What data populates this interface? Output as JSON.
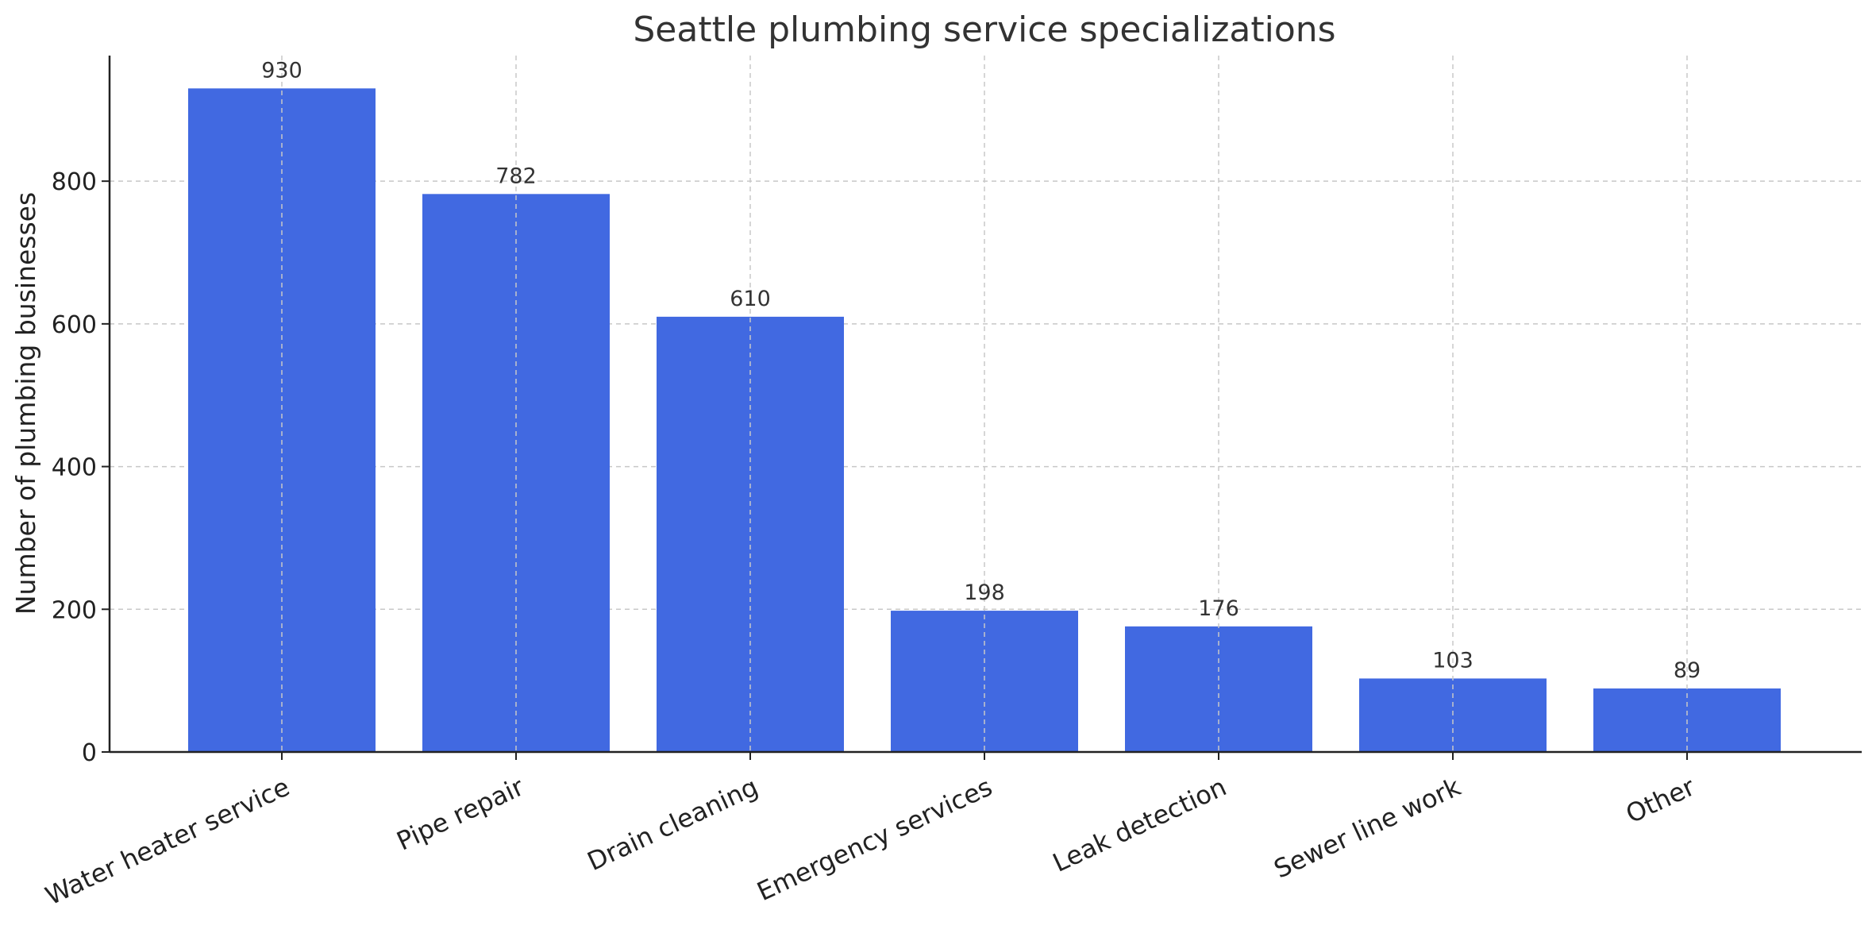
{
  "chart_data": {
    "type": "bar",
    "title": "Seattle plumbing service specializations",
    "xlabel": "",
    "ylabel": "Number of plumbing businesses",
    "categories": [
      "Water heater service",
      "Pipe repair",
      "Drain cleaning",
      "Emergency services",
      "Leak detection",
      "Sewer line work",
      "Other"
    ],
    "values": [
      930,
      782,
      610,
      198,
      176,
      103,
      89
    ],
    "data_labels": [
      "930",
      "782",
      "610",
      "198",
      "176",
      "103",
      "89"
    ],
    "yticks": [
      0,
      200,
      400,
      600,
      800
    ],
    "ytick_labels": [
      "0",
      "200",
      "400",
      "600",
      "800"
    ],
    "ylim": [
      0,
      976
    ],
    "grid": true,
    "legend": "none",
    "bar_color": "#4169E1"
  }
}
